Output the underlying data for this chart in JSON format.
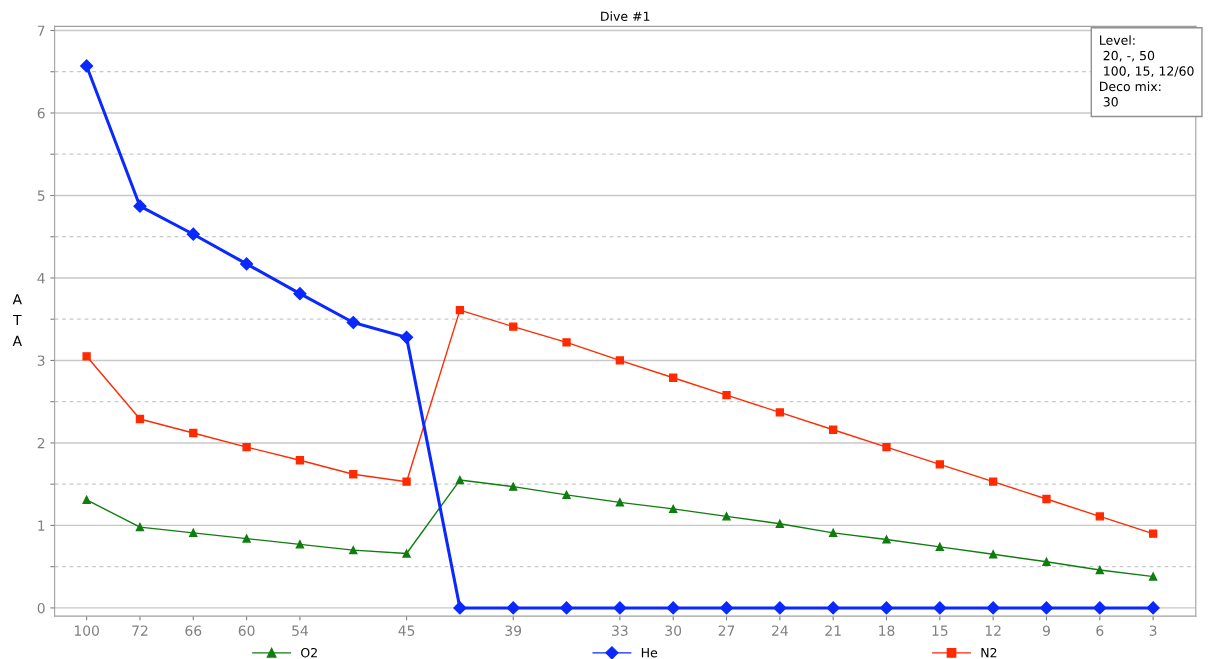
{
  "chart_data": {
    "type": "line",
    "title": "Dive #1",
    "ylabel": "A\nT\nA",
    "categories": [
      "100",
      "72",
      "66",
      "60",
      "54",
      null,
      "45",
      null,
      "39",
      null,
      "33",
      "30",
      "27",
      "24",
      "21",
      "18",
      "15",
      "12",
      "9",
      "6",
      "3"
    ],
    "ylim": [
      -0.1,
      7.05
    ],
    "yticks": [
      0,
      {
        "value": 0.5,
        "label": null
      },
      1,
      {
        "value": 1.5,
        "label": null
      },
      2,
      {
        "value": 2.5,
        "label": null
      },
      3,
      {
        "value": 3.5,
        "label": null
      },
      4,
      {
        "value": 4.5,
        "label": null
      },
      5,
      {
        "value": 5.5,
        "label": null
      },
      6,
      {
        "value": 6.5,
        "label": null
      },
      7
    ],
    "grid": "y",
    "legend": "bottom",
    "annotations": [
      "Level:\n 20, -, 50\n 100, 15, 12/60\nDeco mix:\n 30"
    ],
    "series": [
      {
        "name": "O2",
        "color": "#0f7d0f",
        "marker": "triangle",
        "values": [
          1.31,
          0.98,
          0.91,
          0.84,
          0.77,
          0.7,
          0.66,
          1.55,
          1.47,
          1.37,
          1.28,
          1.2,
          1.11,
          1.02,
          0.91,
          0.83,
          0.74,
          0.65,
          0.56,
          0.46,
          0.38
        ]
      },
      {
        "name": "He",
        "color": "#0a28ff",
        "marker": "diamond",
        "values": [
          6.57,
          4.87,
          4.53,
          4.17,
          3.81,
          3.46,
          3.28,
          0,
          0,
          0,
          0,
          0,
          0,
          0,
          0,
          0,
          0,
          0,
          0,
          0,
          0
        ]
      },
      {
        "name": "N2",
        "color": "#ff2a00",
        "marker": "square",
        "values": [
          3.05,
          2.29,
          2.12,
          1.95,
          1.79,
          1.62,
          1.53,
          3.61,
          3.41,
          3.22,
          3.0,
          2.79,
          2.58,
          2.37,
          2.16,
          1.95,
          1.74,
          1.53,
          1.32,
          1.11,
          0.9
        ]
      }
    ]
  }
}
